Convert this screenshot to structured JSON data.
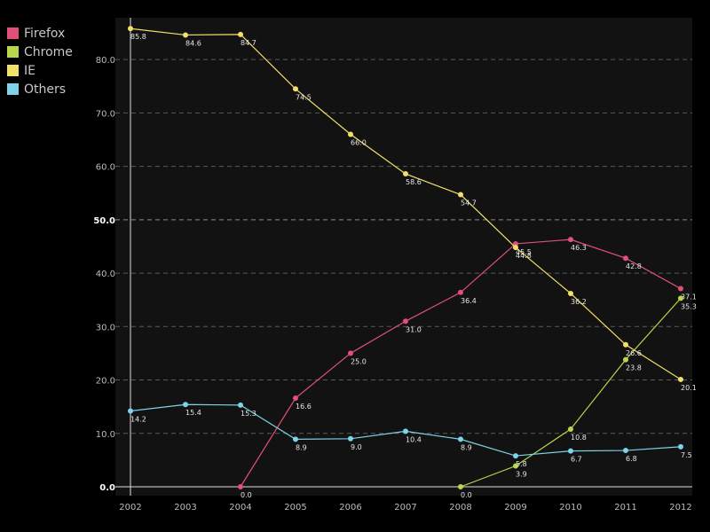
{
  "chart_data": {
    "type": "line",
    "x": [
      "2002",
      "2003",
      "2004",
      "2005",
      "2006",
      "2007",
      "2008",
      "2009",
      "2010",
      "2011",
      "2012"
    ],
    "ylim": [
      0,
      87
    ],
    "yticks": [
      "0.0",
      "10.0",
      "20.0",
      "30.0",
      "40.0",
      "50.0",
      "60.0",
      "70.0",
      "80.0"
    ],
    "grid": true,
    "legend_position": "top-left",
    "series": [
      {
        "name": "Firefox",
        "color": "#e0507a",
        "points": [
          [
            2004,
            0.0
          ],
          [
            2005,
            16.6
          ],
          [
            2006,
            25.0
          ],
          [
            2007,
            31.0
          ],
          [
            2008,
            36.4
          ],
          [
            2009,
            45.5
          ],
          [
            2010,
            46.3
          ],
          [
            2011,
            42.8
          ],
          [
            2012,
            37.1
          ]
        ],
        "labels": [
          "0.0",
          "16.6",
          "25.0",
          "31.0",
          "36.4",
          "45.5",
          "46.3",
          "42.8",
          "37.1"
        ]
      },
      {
        "name": "Chrome",
        "color": "#b7d84a",
        "points": [
          [
            2008,
            0.0
          ],
          [
            2009,
            3.9
          ],
          [
            2010,
            10.8
          ],
          [
            2011,
            23.8
          ],
          [
            2012,
            35.3
          ]
        ],
        "labels": [
          "0.0",
          "3.9",
          "10.8",
          "23.8",
          "35.3"
        ]
      },
      {
        "name": "IE",
        "color": "#f3e06a",
        "points": [
          [
            2002,
            85.8
          ],
          [
            2003,
            84.6
          ],
          [
            2004,
            84.7
          ],
          [
            2005,
            74.5
          ],
          [
            2006,
            66.0
          ],
          [
            2007,
            58.6
          ],
          [
            2008,
            54.7
          ],
          [
            2009,
            44.8
          ],
          [
            2010,
            36.2
          ],
          [
            2011,
            26.6
          ],
          [
            2012,
            20.1
          ]
        ],
        "labels": [
          "85.8",
          "84.6",
          "84.7",
          "74.5",
          "66.0",
          "58.6",
          "54.7",
          "44.8",
          "36.2",
          "26.6",
          "20.1"
        ]
      },
      {
        "name": "Others",
        "color": "#7dd3e8",
        "points": [
          [
            2002,
            14.2
          ],
          [
            2003,
            15.4
          ],
          [
            2004,
            15.3
          ],
          [
            2005,
            8.9
          ],
          [
            2006,
            9.0
          ],
          [
            2007,
            10.4
          ],
          [
            2008,
            8.9
          ],
          [
            2009,
            5.8
          ],
          [
            2010,
            6.7
          ],
          [
            2011,
            6.8
          ],
          [
            2012,
            7.5
          ]
        ],
        "labels": [
          "14.2",
          "15.4",
          "15.3",
          "8.9",
          "9.0",
          "10.4",
          "8.9",
          "5.8",
          "6.7",
          "6.8",
          "7.5"
        ]
      }
    ]
  }
}
